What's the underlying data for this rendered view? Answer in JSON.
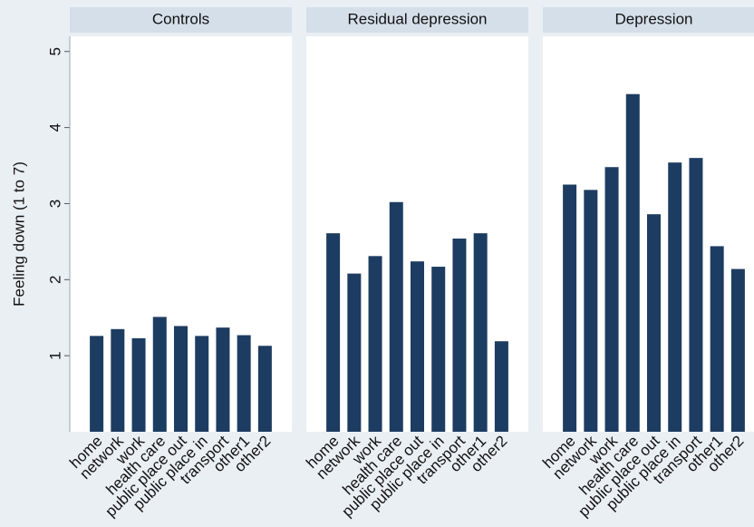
{
  "chart_data": {
    "type": "bar",
    "y_label": "Feeling down (1 to 7)",
    "categories": [
      "home",
      "network",
      "work",
      "health care",
      "public place out",
      "public place in",
      "transport",
      "other1",
      "other2"
    ],
    "color": "#1d3c62",
    "ylim": [
      0,
      5.2
    ],
    "yticks": [
      1,
      2,
      3,
      4,
      5
    ],
    "panels": [
      {
        "title": "Controls",
        "values": [
          1.26,
          1.35,
          1.23,
          1.51,
          1.39,
          1.26,
          1.37,
          1.27,
          1.13
        ]
      },
      {
        "title": "Residual depression",
        "values": [
          2.61,
          2.08,
          2.31,
          3.02,
          2.24,
          2.17,
          2.54,
          2.61,
          1.19
        ]
      },
      {
        "title": "Depression",
        "values": [
          3.25,
          3.18,
          3.48,
          4.44,
          2.86,
          3.54,
          3.6,
          2.44,
          2.14
        ]
      }
    ]
  }
}
